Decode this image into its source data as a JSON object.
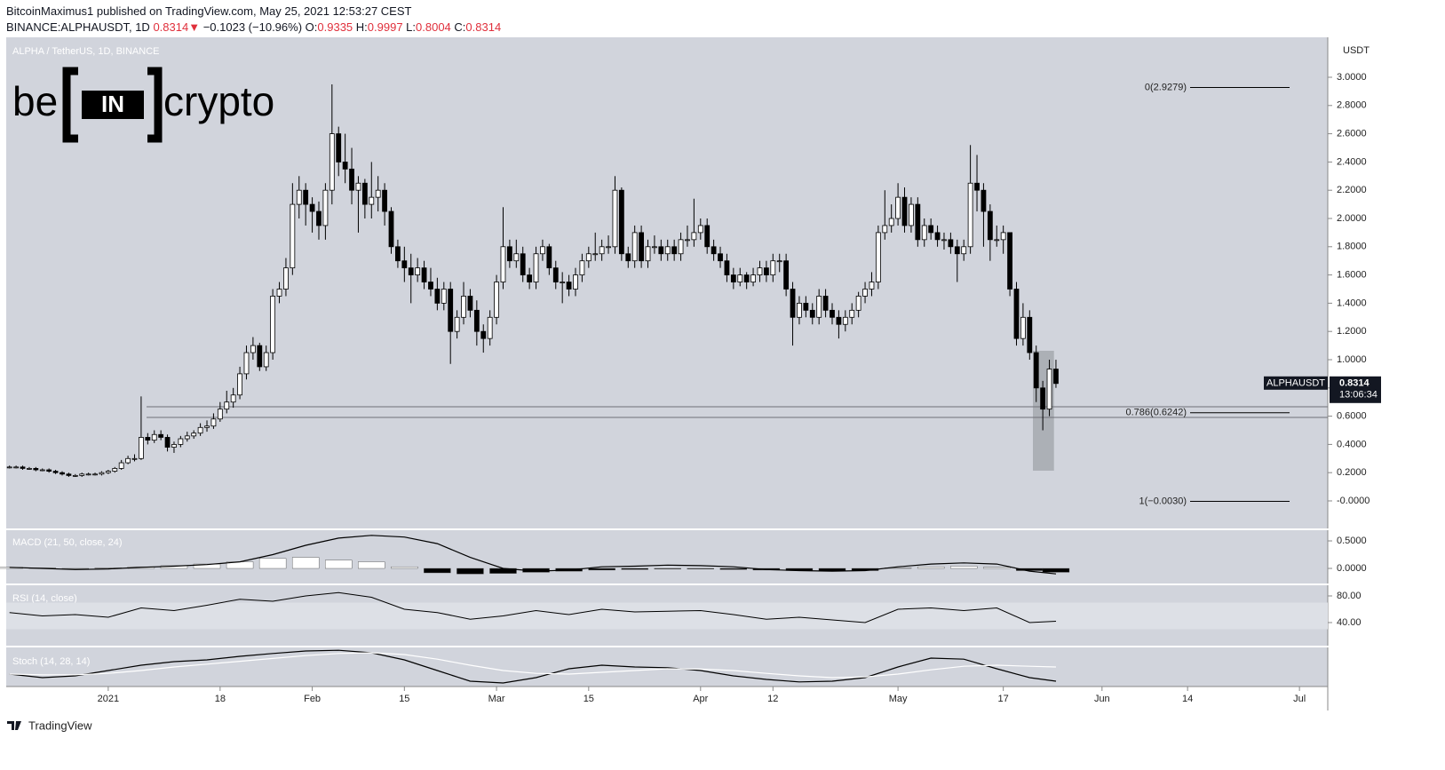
{
  "header": {
    "publisher": "BitcoinMaximus1 published on TradingView.com, May 25, 2021 12:53:27 CEST",
    "symbol": "BINANCE:ALPHAUSDT, 1D",
    "last": "0.8314",
    "arrow": "▼",
    "change": "−0.1023 (−10.96%)",
    "ohlc": [
      {
        "key": "O:",
        "value": "0.9335"
      },
      {
        "key": "H:",
        "value": "0.9997"
      },
      {
        "key": "L:",
        "value": "0.8004"
      },
      {
        "key": "C:",
        "value": "0.8314"
      }
    ]
  },
  "logo": {
    "left": "be",
    "box": "IN",
    "right": "crypto"
  },
  "footer": "TradingView",
  "chart_data": [
    {
      "type": "candlestick",
      "title": "ALPHA / TetherUS, 1D, BINANCE",
      "y_unit": "USDT",
      "up_color": "#ffffff",
      "down_color": "#000000",
      "x": [
        -15,
        -14,
        -13,
        -12,
        -11,
        -10,
        -9,
        -8,
        -7,
        -6,
        -5,
        -4,
        -3,
        -2,
        -1,
        0,
        1,
        2,
        3,
        4,
        5,
        6,
        7,
        8,
        9,
        10,
        11,
        12,
        13,
        14,
        15,
        16,
        17,
        18,
        19,
        20,
        21,
        22,
        23,
        24,
        25,
        26,
        27,
        28,
        29,
        30,
        31,
        32,
        33,
        34,
        35,
        36,
        37,
        38,
        39,
        40,
        41,
        42,
        43,
        44,
        45,
        46,
        47,
        48,
        49,
        50,
        51,
        52,
        53,
        54,
        55,
        56,
        57,
        58,
        59,
        60,
        61,
        62,
        63,
        64,
        65,
        66,
        67,
        68,
        69,
        70,
        71,
        72,
        73,
        74,
        75,
        76,
        77,
        78,
        79,
        80,
        81,
        82,
        83,
        84,
        85,
        86,
        87,
        88,
        89,
        90,
        91,
        92,
        93,
        94,
        95,
        96,
        97,
        98,
        99,
        100,
        101,
        102,
        103,
        104,
        105,
        106,
        107,
        108,
        109,
        110,
        111,
        112,
        113,
        114,
        115,
        116,
        117,
        118,
        119,
        120,
        121,
        122,
        123,
        124,
        125,
        126,
        127,
        128,
        129,
        130,
        131,
        132,
        133,
        134,
        135,
        136,
        137,
        138,
        139,
        140,
        141,
        142,
        143,
        144
      ],
      "open": [
        0.24,
        0.24,
        0.24,
        0.23,
        0.23,
        0.22,
        0.22,
        0.21,
        0.2,
        0.19,
        0.18,
        0.18,
        0.19,
        0.19,
        0.19,
        0.2,
        0.21,
        0.23,
        0.27,
        0.3,
        0.3,
        0.45,
        0.43,
        0.47,
        0.45,
        0.38,
        0.4,
        0.44,
        0.46,
        0.48,
        0.52,
        0.53,
        0.58,
        0.65,
        0.7,
        0.75,
        0.9,
        1.05,
        1.1,
        0.95,
        1.05,
        1.45,
        1.5,
        1.65,
        2.1,
        2.2,
        2.1,
        2.05,
        1.95,
        2.2,
        2.6,
        2.4,
        2.35,
        2.2,
        2.25,
        2.1,
        2.15,
        2.2,
        2.05,
        1.8,
        1.7,
        1.65,
        1.6,
        1.65,
        1.55,
        1.5,
        1.4,
        1.5,
        1.2,
        1.3,
        1.45,
        1.35,
        1.2,
        1.15,
        1.3,
        1.55,
        1.8,
        1.7,
        1.75,
        1.6,
        1.55,
        1.75,
        1.8,
        1.65,
        1.55,
        1.55,
        1.5,
        1.6,
        1.7,
        1.75,
        1.75,
        1.8,
        1.8,
        2.2,
        1.75,
        1.7,
        1.9,
        1.7,
        1.8,
        1.8,
        1.75,
        1.8,
        1.75,
        1.85,
        1.85,
        1.9,
        1.95,
        1.8,
        1.75,
        1.7,
        1.6,
        1.55,
        1.6,
        1.55,
        1.6,
        1.65,
        1.6,
        1.7,
        1.7,
        1.5,
        1.3,
        1.4,
        1.35,
        1.3,
        1.45,
        1.35,
        1.3,
        1.25,
        1.3,
        1.35,
        1.45,
        1.5,
        1.55,
        1.9,
        1.95,
        2.0,
        2.15,
        1.95,
        2.1,
        1.85,
        1.95,
        1.9,
        1.85,
        1.85,
        1.8,
        1.75,
        1.8,
        2.25,
        2.2,
        2.05,
        1.85,
        1.85,
        1.9,
        1.5,
        1.15,
        1.3,
        1.05,
        0.8,
        0.65,
        0.9335
      ],
      "high": [
        0.25,
        0.25,
        0.25,
        0.24,
        0.24,
        0.23,
        0.23,
        0.22,
        0.21,
        0.2,
        0.19,
        0.2,
        0.2,
        0.2,
        0.21,
        0.22,
        0.24,
        0.29,
        0.32,
        0.33,
        0.74,
        0.48,
        0.5,
        0.5,
        0.47,
        0.42,
        0.46,
        0.49,
        0.5,
        0.55,
        0.57,
        0.62,
        0.7,
        0.78,
        0.8,
        0.95,
        1.1,
        1.16,
        1.12,
        1.1,
        1.5,
        1.55,
        1.72,
        2.25,
        2.3,
        2.25,
        2.15,
        2.12,
        2.25,
        2.95,
        2.65,
        2.6,
        2.5,
        2.3,
        2.28,
        2.4,
        2.3,
        2.25,
        2.08,
        1.85,
        1.8,
        1.75,
        1.72,
        1.7,
        1.65,
        1.58,
        1.55,
        1.55,
        1.35,
        1.55,
        1.5,
        1.42,
        1.25,
        1.35,
        1.6,
        2.08,
        1.85,
        1.85,
        1.8,
        1.65,
        1.8,
        1.85,
        1.82,
        1.7,
        1.62,
        1.6,
        1.65,
        1.75,
        1.8,
        1.9,
        1.85,
        1.88,
        2.3,
        2.22,
        1.8,
        1.95,
        1.95,
        1.85,
        1.88,
        1.85,
        1.85,
        1.85,
        1.9,
        1.95,
        2.14,
        2.0,
        2.0,
        1.85,
        1.8,
        1.75,
        1.65,
        1.65,
        1.62,
        1.65,
        1.7,
        1.7,
        1.75,
        1.75,
        1.75,
        1.55,
        1.45,
        1.45,
        1.4,
        1.5,
        1.5,
        1.4,
        1.35,
        1.35,
        1.4,
        1.48,
        1.55,
        1.62,
        1.95,
        2.2,
        2.1,
        2.25,
        2.22,
        2.15,
        2.15,
        2.0,
        2.0,
        1.95,
        1.9,
        1.9,
        1.85,
        1.85,
        2.52,
        2.45,
        2.25,
        2.1,
        1.95,
        1.95,
        1.9,
        1.55,
        1.4,
        1.35,
        1.1,
        0.85,
        1.0,
        0.9997
      ],
      "low": [
        0.23,
        0.23,
        0.22,
        0.22,
        0.21,
        0.21,
        0.2,
        0.19,
        0.18,
        0.17,
        0.17,
        0.17,
        0.18,
        0.18,
        0.18,
        0.19,
        0.2,
        0.22,
        0.26,
        0.28,
        0.29,
        0.4,
        0.41,
        0.43,
        0.35,
        0.34,
        0.38,
        0.42,
        0.44,
        0.46,
        0.49,
        0.51,
        0.56,
        0.62,
        0.66,
        0.72,
        0.86,
        1.0,
        0.92,
        0.92,
        1.0,
        1.4,
        1.45,
        1.6,
        2.0,
        1.95,
        1.9,
        1.85,
        1.85,
        2.1,
        2.3,
        2.25,
        2.1,
        1.9,
        2.0,
        2.0,
        2.05,
        1.95,
        1.75,
        1.65,
        1.55,
        1.4,
        1.55,
        1.5,
        1.45,
        1.35,
        1.35,
        0.97,
        1.15,
        1.25,
        1.3,
        1.1,
        1.05,
        1.1,
        1.25,
        1.5,
        1.65,
        1.65,
        1.55,
        1.5,
        1.5,
        1.7,
        1.6,
        1.5,
        1.4,
        1.45,
        1.45,
        1.55,
        1.65,
        1.7,
        1.7,
        1.75,
        1.75,
        1.7,
        1.65,
        1.65,
        1.65,
        1.65,
        1.75,
        1.7,
        1.7,
        1.7,
        1.7,
        1.8,
        1.8,
        1.85,
        1.75,
        1.7,
        1.65,
        1.55,
        1.5,
        1.52,
        1.5,
        1.52,
        1.55,
        1.55,
        1.55,
        1.62,
        1.45,
        1.1,
        1.25,
        1.3,
        1.25,
        1.25,
        1.3,
        1.25,
        1.15,
        1.2,
        1.25,
        1.3,
        1.4,
        1.45,
        1.5,
        1.85,
        1.9,
        1.95,
        1.9,
        1.9,
        1.8,
        1.8,
        1.85,
        1.8,
        1.78,
        1.75,
        1.55,
        1.7,
        1.75,
        2.05,
        1.8,
        1.7,
        1.8,
        1.75,
        1.45,
        1.1,
        1.1,
        1.0,
        0.7,
        0.5,
        0.6,
        0.8004
      ],
      "close": [
        0.24,
        0.24,
        0.23,
        0.23,
        0.22,
        0.22,
        0.21,
        0.2,
        0.19,
        0.18,
        0.18,
        0.19,
        0.19,
        0.19,
        0.2,
        0.21,
        0.23,
        0.27,
        0.3,
        0.3,
        0.45,
        0.43,
        0.47,
        0.45,
        0.38,
        0.4,
        0.44,
        0.46,
        0.48,
        0.52,
        0.53,
        0.58,
        0.65,
        0.7,
        0.75,
        0.9,
        1.05,
        1.1,
        0.95,
        1.05,
        1.45,
        1.5,
        1.65,
        2.1,
        2.2,
        2.1,
        2.05,
        1.95,
        2.2,
        2.6,
        2.4,
        2.35,
        2.2,
        2.25,
        2.1,
        2.15,
        2.2,
        2.05,
        1.8,
        1.7,
        1.65,
        1.6,
        1.65,
        1.55,
        1.5,
        1.4,
        1.5,
        1.2,
        1.3,
        1.45,
        1.35,
        1.2,
        1.15,
        1.3,
        1.55,
        1.8,
        1.7,
        1.75,
        1.6,
        1.55,
        1.75,
        1.8,
        1.65,
        1.55,
        1.55,
        1.5,
        1.6,
        1.7,
        1.75,
        1.75,
        1.8,
        1.8,
        2.2,
        1.75,
        1.7,
        1.9,
        1.7,
        1.8,
        1.8,
        1.75,
        1.8,
        1.75,
        1.85,
        1.85,
        1.9,
        1.95,
        1.8,
        1.75,
        1.7,
        1.6,
        1.55,
        1.6,
        1.55,
        1.6,
        1.65,
        1.6,
        1.7,
        1.7,
        1.5,
        1.3,
        1.4,
        1.35,
        1.3,
        1.45,
        1.35,
        1.3,
        1.25,
        1.3,
        1.35,
        1.45,
        1.5,
        1.55,
        1.9,
        1.95,
        2.0,
        2.15,
        1.95,
        2.1,
        1.85,
        1.95,
        1.9,
        1.85,
        1.85,
        1.8,
        1.75,
        1.8,
        2.25,
        2.2,
        2.05,
        1.85,
        1.85,
        1.9,
        1.5,
        1.15,
        1.3,
        1.05,
        0.8,
        0.65,
        0.9335,
        0.8314
      ],
      "xlim": [
        -15.5,
        185.3
      ],
      "xticks": [
        {
          "value": 0,
          "label": "2021"
        },
        {
          "value": 17,
          "label": "18"
        },
        {
          "value": 31,
          "label": "Feb"
        },
        {
          "value": 45,
          "label": "15"
        },
        {
          "value": 59,
          "label": "Mar"
        },
        {
          "value": 73,
          "label": "15"
        },
        {
          "value": 90,
          "label": "Apr"
        },
        {
          "value": 101,
          "label": "12"
        },
        {
          "value": 120,
          "label": "May"
        },
        {
          "value": 136,
          "label": "17"
        },
        {
          "value": 151,
          "label": "Jun"
        },
        {
          "value": 164,
          "label": "14"
        },
        {
          "value": 181,
          "label": "Jul"
        }
      ],
      "ylim": [
        -0.195,
        3.283
      ],
      "yticks": [
        {
          "value": 3,
          "label": "3.0000"
        },
        {
          "value": 2.8,
          "label": "2.8000"
        },
        {
          "value": 2.6,
          "label": "2.6000"
        },
        {
          "value": 2.4,
          "label": "2.4000"
        },
        {
          "value": 2.2,
          "label": "2.2000"
        },
        {
          "value": 2,
          "label": "2.0000"
        },
        {
          "value": 1.8,
          "label": "1.8000"
        },
        {
          "value": 1.6,
          "label": "1.6000"
        },
        {
          "value": 1.4,
          "label": "1.4000"
        },
        {
          "value": 1.2,
          "label": "1.2000"
        },
        {
          "value": 1,
          "label": "1.0000"
        },
        {
          "value": 0.8,
          "label": "0.8000"
        },
        {
          "value": 0.6,
          "label": "0.6000"
        },
        {
          "value": 0.4,
          "label": "0.4000"
        },
        {
          "value": 0.2,
          "label": "0.2000"
        },
        {
          "value": 0,
          "label": "-0.0000"
        }
      ],
      "fib_levels": [
        {
          "value": 2.9279,
          "label": "0(2.9279)"
        },
        {
          "value": 0.6242,
          "label": "0.786(0.6242)"
        },
        {
          "value": -0.003,
          "label": "1(−0.0030)"
        }
      ],
      "support_zone": [
        0.591,
        0.667
      ],
      "highlight": {
        "x": [
          140.5,
          143.7
        ],
        "y": [
          0.214,
          1.063
        ]
      },
      "last_label": {
        "symbol": "ALPHAUSDT",
        "price": "0.8314",
        "countdown": "13:06:34"
      }
    },
    {
      "type": "macd",
      "title": "MACD (21, 50, close, 24)",
      "x": [
        -15,
        -10,
        -5,
        0,
        5,
        10,
        15,
        20,
        25,
        30,
        35,
        40,
        45,
        50,
        55,
        60,
        65,
        70,
        75,
        80,
        85,
        90,
        95,
        100,
        105,
        110,
        115,
        120,
        125,
        130,
        135,
        140,
        144
      ],
      "line": {
        "color": "#000000",
        "values": [
          0.02,
          0.0,
          -0.02,
          -0.01,
          0.02,
          0.04,
          0.07,
          0.12,
          0.25,
          0.42,
          0.55,
          0.6,
          0.57,
          0.45,
          0.2,
          0.0,
          -0.05,
          -0.03,
          0.03,
          0.04,
          0.06,
          0.05,
          0.03,
          -0.02,
          -0.04,
          -0.05,
          -0.04,
          0.03,
          0.08,
          0.1,
          0.08,
          -0.05,
          -0.1
        ]
      },
      "histogram": {
        "up_color": "#ffffff",
        "down_color": "#000000",
        "values": [
          0.02,
          0.01,
          0.0,
          0.01,
          0.03,
          0.05,
          0.08,
          0.12,
          0.18,
          0.2,
          0.15,
          0.12,
          0.03,
          -0.08,
          -0.1,
          -0.09,
          -0.07,
          -0.05,
          -0.03,
          -0.02,
          -0.01,
          -0.01,
          -0.02,
          -0.03,
          -0.04,
          -0.05,
          -0.04,
          0.01,
          0.03,
          0.04,
          0.02,
          -0.04,
          -0.07
        ]
      },
      "ylim": [
        -0.274,
        0.694
      ],
      "yticks": [
        {
          "value": 0.5,
          "label": "0.5000"
        },
        {
          "value": 0,
          "label": "0.0000"
        }
      ]
    },
    {
      "type": "rsi",
      "title": "RSI (14, close)",
      "x": [
        -15,
        -10,
        -5,
        0,
        5,
        10,
        15,
        20,
        25,
        30,
        35,
        40,
        45,
        50,
        55,
        60,
        65,
        70,
        75,
        80,
        85,
        90,
        95,
        100,
        105,
        110,
        115,
        120,
        125,
        130,
        135,
        140,
        144
      ],
      "color": "#000000",
      "band": [
        30,
        70
      ],
      "values": [
        55,
        50,
        52,
        48,
        62,
        58,
        66,
        75,
        72,
        80,
        85,
        78,
        60,
        55,
        45,
        50,
        58,
        52,
        60,
        56,
        57,
        58,
        52,
        45,
        48,
        44,
        40,
        60,
        62,
        58,
        62,
        40,
        42
      ],
      "ylim": [
        5.3,
        96
      ],
      "yticks": [
        {
          "value": 80,
          "label": "80.00"
        },
        {
          "value": 40,
          "label": "40.00"
        }
      ]
    },
    {
      "type": "stoch",
      "title": "Stoch (14, 28, 14)",
      "x": [
        -15,
        -10,
        -5,
        0,
        5,
        10,
        15,
        20,
        25,
        30,
        35,
        40,
        45,
        50,
        55,
        60,
        65,
        70,
        75,
        80,
        85,
        90,
        95,
        100,
        105,
        110,
        115,
        120,
        125,
        130,
        135,
        140,
        144
      ],
      "series": [
        {
          "color": "#000000",
          "values": [
            30,
            20,
            25,
            40,
            55,
            65,
            70,
            80,
            88,
            95,
            97,
            90,
            70,
            40,
            10,
            5,
            20,
            45,
            55,
            50,
            48,
            40,
            25,
            15,
            8,
            10,
            20,
            50,
            75,
            72,
            45,
            20,
            10
          ]
        },
        {
          "color": "#ffffff",
          "values": [
            30,
            28,
            28,
            32,
            40,
            50,
            58,
            66,
            74,
            82,
            88,
            90,
            85,
            72,
            55,
            40,
            32,
            30,
            35,
            40,
            45,
            44,
            40,
            32,
            25,
            20,
            22,
            30,
            42,
            52,
            55,
            52,
            50
          ]
        }
      ],
      "ylim": [
        -5,
        105
      ]
    }
  ]
}
